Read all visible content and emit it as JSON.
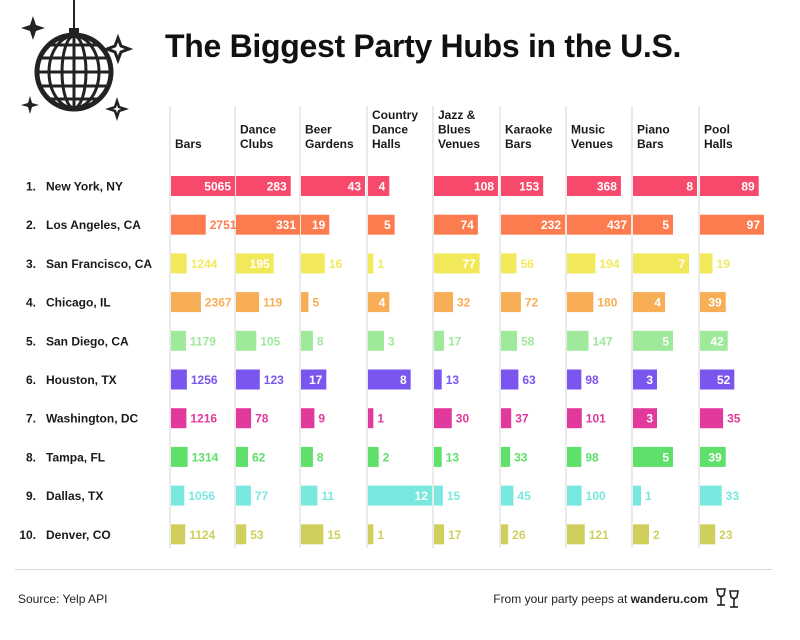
{
  "title": "The Biggest Party Hubs in the U.S.",
  "footer": {
    "source": "Source: Yelp API",
    "credit_prefix": "From your party peeps at",
    "credit_brand": "wanderu.com"
  },
  "icons": [
    "disco-ball-icon",
    "sparkle-icon",
    "champagne-glasses-icon"
  ],
  "chart_data": {
    "type": "bar",
    "title": "The Biggest Party Hubs in the U.S.",
    "columns": [
      [
        "Bars"
      ],
      [
        "Dance",
        "Clubs"
      ],
      [
        "Beer",
        "Gardens"
      ],
      [
        "Country",
        "Dance",
        "Halls"
      ],
      [
        "Jazz &",
        "Blues",
        "Venues"
      ],
      [
        "Karaoke",
        "Bars"
      ],
      [
        "Music",
        "Venues"
      ],
      [
        "Piano",
        "Bars"
      ],
      [
        "Pool",
        "Halls"
      ]
    ],
    "rows": [
      {
        "rank": "1.",
        "city": "New York, NY",
        "color": "#f6496b",
        "values": [
          5065,
          283,
          43,
          4,
          108,
          153,
          368,
          8,
          89
        ]
      },
      {
        "rank": "2.",
        "city": "Los Angeles, CA",
        "color": "#fd7c4f",
        "values": [
          2751,
          331,
          19,
          5,
          74,
          232,
          437,
          5,
          97
        ]
      },
      {
        "rank": "3.",
        "city": "San Francisco, CA",
        "color": "#f2e95a",
        "values": [
          1244,
          195,
          16,
          1,
          77,
          56,
          194,
          7,
          19
        ]
      },
      {
        "rank": "4.",
        "city": "Chicago, IL",
        "color": "#f8ae54",
        "values": [
          2367,
          119,
          5,
          4,
          32,
          72,
          180,
          4,
          39
        ]
      },
      {
        "rank": "5.",
        "city": "San Diego, CA",
        "color": "#9ee99a",
        "values": [
          1179,
          105,
          8,
          3,
          17,
          58,
          147,
          5,
          42
        ]
      },
      {
        "rank": "6.",
        "city": "Houston, TX",
        "color": "#7a56ef",
        "values": [
          1256,
          123,
          17,
          8,
          13,
          63,
          98,
          3,
          52
        ]
      },
      {
        "rank": "7.",
        "city": "Washington, DC",
        "color": "#e2399c",
        "values": [
          1216,
          78,
          9,
          1,
          30,
          37,
          101,
          3,
          35
        ]
      },
      {
        "rank": "8.",
        "city": "Tampa, FL",
        "color": "#5ee06a",
        "values": [
          1314,
          62,
          8,
          2,
          13,
          33,
          98,
          5,
          39
        ]
      },
      {
        "rank": "9.",
        "city": "Dallas, TX",
        "color": "#79e8de",
        "values": [
          1056,
          77,
          11,
          12,
          15,
          45,
          100,
          1,
          33
        ]
      },
      {
        "rank": "10.",
        "city": "Denver, CO",
        "color": "#cfcf5c",
        "values": [
          1124,
          53,
          15,
          1,
          17,
          26,
          121,
          2,
          23
        ]
      }
    ]
  }
}
